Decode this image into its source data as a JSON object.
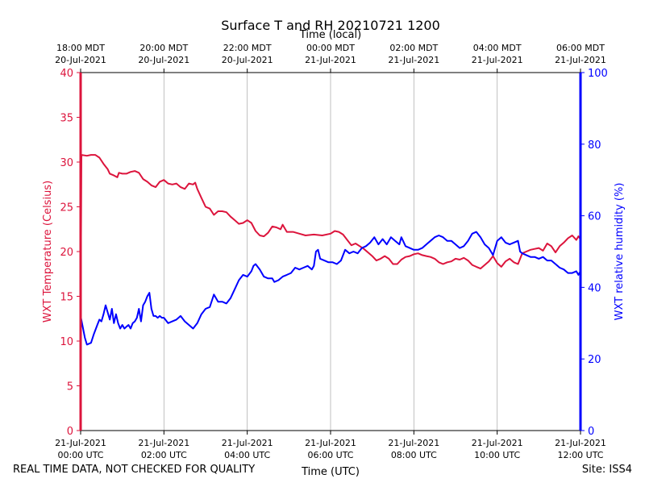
{
  "chart_data": {
    "type": "line",
    "title": "Surface T and RH 20210721 1200",
    "top_axis_label": "Time (local)",
    "xlabel": "Time (UTC)",
    "ylabel_left": "WXT Temperature (Celsius)",
    "ylabel_right": "WXT relative humidity (%)",
    "x_range_hours": [
      0,
      12
    ],
    "ylim_left": [
      0,
      40
    ],
    "ylim_right": [
      0,
      100
    ],
    "yticks_left": [
      0,
      5,
      10,
      15,
      20,
      25,
      30,
      35,
      40
    ],
    "yticks_right": [
      0,
      20,
      40,
      60,
      80,
      100
    ],
    "bottom_ticks": [
      {
        "hour": 0,
        "line1": "21-Jul-2021",
        "line2": "00:00 UTC"
      },
      {
        "hour": 2,
        "line1": "21-Jul-2021",
        "line2": "02:00 UTC"
      },
      {
        "hour": 4,
        "line1": "21-Jul-2021",
        "line2": "04:00 UTC"
      },
      {
        "hour": 6,
        "line1": "21-Jul-2021",
        "line2": "06:00 UTC"
      },
      {
        "hour": 8,
        "line1": "21-Jul-2021",
        "line2": "08:00 UTC"
      },
      {
        "hour": 10,
        "line1": "21-Jul-2021",
        "line2": "10:00 UTC"
      },
      {
        "hour": 12,
        "line1": "21-Jul-2021",
        "line2": "12:00 UTC"
      }
    ],
    "top_ticks": [
      {
        "hour": 0,
        "line1": "18:00 MDT",
        "line2": "20-Jul-2021"
      },
      {
        "hour": 2,
        "line1": "20:00 MDT",
        "line2": "20-Jul-2021"
      },
      {
        "hour": 4,
        "line1": "22:00 MDT",
        "line2": "20-Jul-2021"
      },
      {
        "hour": 6,
        "line1": "00:00 MDT",
        "line2": "21-Jul-2021"
      },
      {
        "hour": 8,
        "line1": "02:00 MDT",
        "line2": "21-Jul-2021"
      },
      {
        "hour": 10,
        "line1": "04:00 MDT",
        "line2": "21-Jul-2021"
      },
      {
        "hour": 12,
        "line1": "06:00 MDT",
        "line2": "21-Jul-2021"
      }
    ],
    "grid_hours": [
      2,
      4,
      6,
      8,
      10
    ],
    "series": [
      {
        "name": "WXT Temperature",
        "axis": "left",
        "color": "#dc143c",
        "points": [
          [
            0,
            12.5
          ],
          [
            0.02,
            30.8
          ],
          [
            0.15,
            30.7
          ],
          [
            0.25,
            30.8
          ],
          [
            0.35,
            30.8
          ],
          [
            0.45,
            30.5
          ],
          [
            0.55,
            29.8
          ],
          [
            0.65,
            29.2
          ],
          [
            0.7,
            28.7
          ],
          [
            0.8,
            28.5
          ],
          [
            0.88,
            28.3
          ],
          [
            0.92,
            28.8
          ],
          [
            1.0,
            28.7
          ],
          [
            1.1,
            28.7
          ],
          [
            1.2,
            28.9
          ],
          [
            1.3,
            29.0
          ],
          [
            1.4,
            28.8
          ],
          [
            1.5,
            28.1
          ],
          [
            1.6,
            27.8
          ],
          [
            1.7,
            27.4
          ],
          [
            1.8,
            27.2
          ],
          [
            1.9,
            27.8
          ],
          [
            2.0,
            28.0
          ],
          [
            2.1,
            27.6
          ],
          [
            2.2,
            27.5
          ],
          [
            2.3,
            27.6
          ],
          [
            2.4,
            27.2
          ],
          [
            2.5,
            27.0
          ],
          [
            2.6,
            27.6
          ],
          [
            2.7,
            27.5
          ],
          [
            2.75,
            27.7
          ],
          [
            2.8,
            27.0
          ],
          [
            2.9,
            26.0
          ],
          [
            3.0,
            25.0
          ],
          [
            3.1,
            24.8
          ],
          [
            3.2,
            24.1
          ],
          [
            3.3,
            24.5
          ],
          [
            3.4,
            24.5
          ],
          [
            3.5,
            24.4
          ],
          [
            3.6,
            23.9
          ],
          [
            3.7,
            23.5
          ],
          [
            3.8,
            23.1
          ],
          [
            3.9,
            23.2
          ],
          [
            4.0,
            23.5
          ],
          [
            4.1,
            23.2
          ],
          [
            4.2,
            22.3
          ],
          [
            4.3,
            21.8
          ],
          [
            4.4,
            21.7
          ],
          [
            4.5,
            22.1
          ],
          [
            4.6,
            22.8
          ],
          [
            4.7,
            22.7
          ],
          [
            4.8,
            22.5
          ],
          [
            4.85,
            23.0
          ],
          [
            4.95,
            22.2
          ],
          [
            5.1,
            22.2
          ],
          [
            5.25,
            22.0
          ],
          [
            5.4,
            21.8
          ],
          [
            5.6,
            21.9
          ],
          [
            5.8,
            21.8
          ],
          [
            6.0,
            22.0
          ],
          [
            6.1,
            22.3
          ],
          [
            6.2,
            22.2
          ],
          [
            6.3,
            21.9
          ],
          [
            6.4,
            21.3
          ],
          [
            6.5,
            20.7
          ],
          [
            6.6,
            20.9
          ],
          [
            6.7,
            20.6
          ],
          [
            6.8,
            20.3
          ],
          [
            6.9,
            19.9
          ],
          [
            7.0,
            19.5
          ],
          [
            7.1,
            19.0
          ],
          [
            7.2,
            19.2
          ],
          [
            7.3,
            19.5
          ],
          [
            7.4,
            19.2
          ],
          [
            7.5,
            18.6
          ],
          [
            7.6,
            18.6
          ],
          [
            7.7,
            19.1
          ],
          [
            7.8,
            19.4
          ],
          [
            7.9,
            19.5
          ],
          [
            8.0,
            19.7
          ],
          [
            8.1,
            19.8
          ],
          [
            8.2,
            19.6
          ],
          [
            8.3,
            19.5
          ],
          [
            8.4,
            19.4
          ],
          [
            8.5,
            19.2
          ],
          [
            8.6,
            18.8
          ],
          [
            8.7,
            18.6
          ],
          [
            8.8,
            18.8
          ],
          [
            8.9,
            18.9
          ],
          [
            9.0,
            19.2
          ],
          [
            9.1,
            19.1
          ],
          [
            9.2,
            19.3
          ],
          [
            9.3,
            19.0
          ],
          [
            9.4,
            18.5
          ],
          [
            9.5,
            18.3
          ],
          [
            9.6,
            18.1
          ],
          [
            9.7,
            18.5
          ],
          [
            9.8,
            18.9
          ],
          [
            9.9,
            19.5
          ],
          [
            10.0,
            18.7
          ],
          [
            10.1,
            18.3
          ],
          [
            10.2,
            18.9
          ],
          [
            10.3,
            19.2
          ],
          [
            10.4,
            18.8
          ],
          [
            10.5,
            18.6
          ],
          [
            10.6,
            19.8
          ],
          [
            10.7,
            20.0
          ],
          [
            10.8,
            20.2
          ],
          [
            10.9,
            20.3
          ],
          [
            11.0,
            20.4
          ],
          [
            11.1,
            20.1
          ],
          [
            11.2,
            20.9
          ],
          [
            11.3,
            20.6
          ],
          [
            11.4,
            19.9
          ],
          [
            11.5,
            20.6
          ],
          [
            11.6,
            21.0
          ],
          [
            11.7,
            21.5
          ],
          [
            11.8,
            21.8
          ],
          [
            11.9,
            21.3
          ],
          [
            11.95,
            21.7
          ],
          [
            12.0,
            21.4
          ]
        ]
      },
      {
        "name": "WXT relative humidity",
        "axis": "right",
        "color": "#0000ff",
        "points": [
          [
            0,
            32.0
          ],
          [
            0.05,
            29.0
          ],
          [
            0.1,
            26.0
          ],
          [
            0.15,
            24.0
          ],
          [
            0.25,
            24.5
          ],
          [
            0.32,
            27.0
          ],
          [
            0.4,
            29.5
          ],
          [
            0.45,
            31.0
          ],
          [
            0.5,
            30.5
          ],
          [
            0.55,
            32.5
          ],
          [
            0.6,
            35.0
          ],
          [
            0.65,
            33.0
          ],
          [
            0.7,
            31.0
          ],
          [
            0.75,
            34.0
          ],
          [
            0.8,
            30.0
          ],
          [
            0.85,
            32.5
          ],
          [
            0.9,
            30.0
          ],
          [
            0.95,
            28.5
          ],
          [
            1.0,
            29.5
          ],
          [
            1.05,
            28.5
          ],
          [
            1.1,
            29.0
          ],
          [
            1.15,
            29.5
          ],
          [
            1.2,
            28.5
          ],
          [
            1.25,
            30.0
          ],
          [
            1.3,
            30.5
          ],
          [
            1.35,
            31.5
          ],
          [
            1.4,
            34.0
          ],
          [
            1.45,
            30.5
          ],
          [
            1.5,
            35.0
          ],
          [
            1.55,
            36.0
          ],
          [
            1.6,
            37.5
          ],
          [
            1.65,
            38.5
          ],
          [
            1.7,
            34.0
          ],
          [
            1.75,
            32.0
          ],
          [
            1.8,
            32.0
          ],
          [
            1.85,
            31.5
          ],
          [
            1.9,
            32.0
          ],
          [
            1.95,
            31.5
          ],
          [
            2.0,
            31.5
          ],
          [
            2.1,
            30.0
          ],
          [
            2.2,
            30.5
          ],
          [
            2.3,
            31.0
          ],
          [
            2.4,
            32.0
          ],
          [
            2.5,
            30.5
          ],
          [
            2.6,
            29.5
          ],
          [
            2.7,
            28.5
          ],
          [
            2.8,
            30.0
          ],
          [
            2.9,
            32.5
          ],
          [
            3.0,
            34.0
          ],
          [
            3.1,
            34.5
          ],
          [
            3.2,
            38.0
          ],
          [
            3.3,
            36.0
          ],
          [
            3.4,
            36.0
          ],
          [
            3.5,
            35.5
          ],
          [
            3.6,
            37.0
          ],
          [
            3.7,
            39.5
          ],
          [
            3.8,
            42.0
          ],
          [
            3.9,
            43.5
          ],
          [
            4.0,
            43.0
          ],
          [
            4.1,
            44.5
          ],
          [
            4.15,
            46.0
          ],
          [
            4.2,
            46.5
          ],
          [
            4.3,
            45.0
          ],
          [
            4.4,
            43.0
          ],
          [
            4.5,
            42.5
          ],
          [
            4.6,
            42.5
          ],
          [
            4.65,
            41.5
          ],
          [
            4.75,
            42.0
          ],
          [
            4.85,
            43.0
          ],
          [
            4.95,
            43.5
          ],
          [
            5.05,
            44.0
          ],
          [
            5.15,
            45.5
          ],
          [
            5.25,
            45.0
          ],
          [
            5.35,
            45.5
          ],
          [
            5.45,
            46.0
          ],
          [
            5.55,
            45.0
          ],
          [
            5.6,
            46.0
          ],
          [
            5.65,
            50.0
          ],
          [
            5.7,
            50.5
          ],
          [
            5.75,
            48.0
          ],
          [
            5.85,
            47.5
          ],
          [
            5.95,
            47.0
          ],
          [
            6.05,
            47.0
          ],
          [
            6.15,
            46.5
          ],
          [
            6.25,
            47.5
          ],
          [
            6.35,
            50.5
          ],
          [
            6.45,
            49.5
          ],
          [
            6.55,
            50.0
          ],
          [
            6.65,
            49.5
          ],
          [
            6.75,
            51.0
          ],
          [
            6.85,
            51.5
          ],
          [
            6.95,
            52.5
          ],
          [
            7.05,
            54.0
          ],
          [
            7.15,
            52.0
          ],
          [
            7.25,
            53.5
          ],
          [
            7.35,
            52.0
          ],
          [
            7.45,
            54.0
          ],
          [
            7.55,
            53.0
          ],
          [
            7.65,
            52.0
          ],
          [
            7.7,
            54.0
          ],
          [
            7.8,
            51.5
          ],
          [
            7.9,
            51.0
          ],
          [
            8.0,
            50.5
          ],
          [
            8.1,
            50.5
          ],
          [
            8.2,
            51.0
          ],
          [
            8.3,
            52.0
          ],
          [
            8.4,
            53.0
          ],
          [
            8.5,
            54.0
          ],
          [
            8.6,
            54.5
          ],
          [
            8.7,
            54.0
          ],
          [
            8.8,
            53.0
          ],
          [
            8.9,
            53.0
          ],
          [
            9.0,
            52.0
          ],
          [
            9.1,
            51.0
          ],
          [
            9.2,
            51.5
          ],
          [
            9.3,
            53.0
          ],
          [
            9.4,
            55.0
          ],
          [
            9.5,
            55.5
          ],
          [
            9.6,
            54.0
          ],
          [
            9.7,
            52.0
          ],
          [
            9.8,
            51.0
          ],
          [
            9.9,
            49.0
          ],
          [
            10.0,
            53.0
          ],
          [
            10.1,
            54.0
          ],
          [
            10.2,
            52.5
          ],
          [
            10.3,
            52.0
          ],
          [
            10.4,
            52.5
          ],
          [
            10.5,
            53.0
          ],
          [
            10.55,
            50.0
          ],
          [
            10.6,
            49.5
          ],
          [
            10.7,
            49.0
          ],
          [
            10.8,
            48.5
          ],
          [
            10.9,
            48.5
          ],
          [
            11.0,
            48.0
          ],
          [
            11.1,
            48.5
          ],
          [
            11.2,
            47.5
          ],
          [
            11.3,
            47.5
          ],
          [
            11.4,
            46.5
          ],
          [
            11.5,
            45.5
          ],
          [
            11.6,
            45.0
          ],
          [
            11.7,
            44.0
          ],
          [
            11.8,
            44.0
          ],
          [
            11.9,
            44.5
          ],
          [
            11.95,
            43.5
          ],
          [
            12.0,
            44.5
          ]
        ]
      }
    ]
  },
  "footer": {
    "left_note": "REAL TIME DATA, NOT CHECKED FOR QUALITY",
    "site": "Site: ISS4"
  }
}
